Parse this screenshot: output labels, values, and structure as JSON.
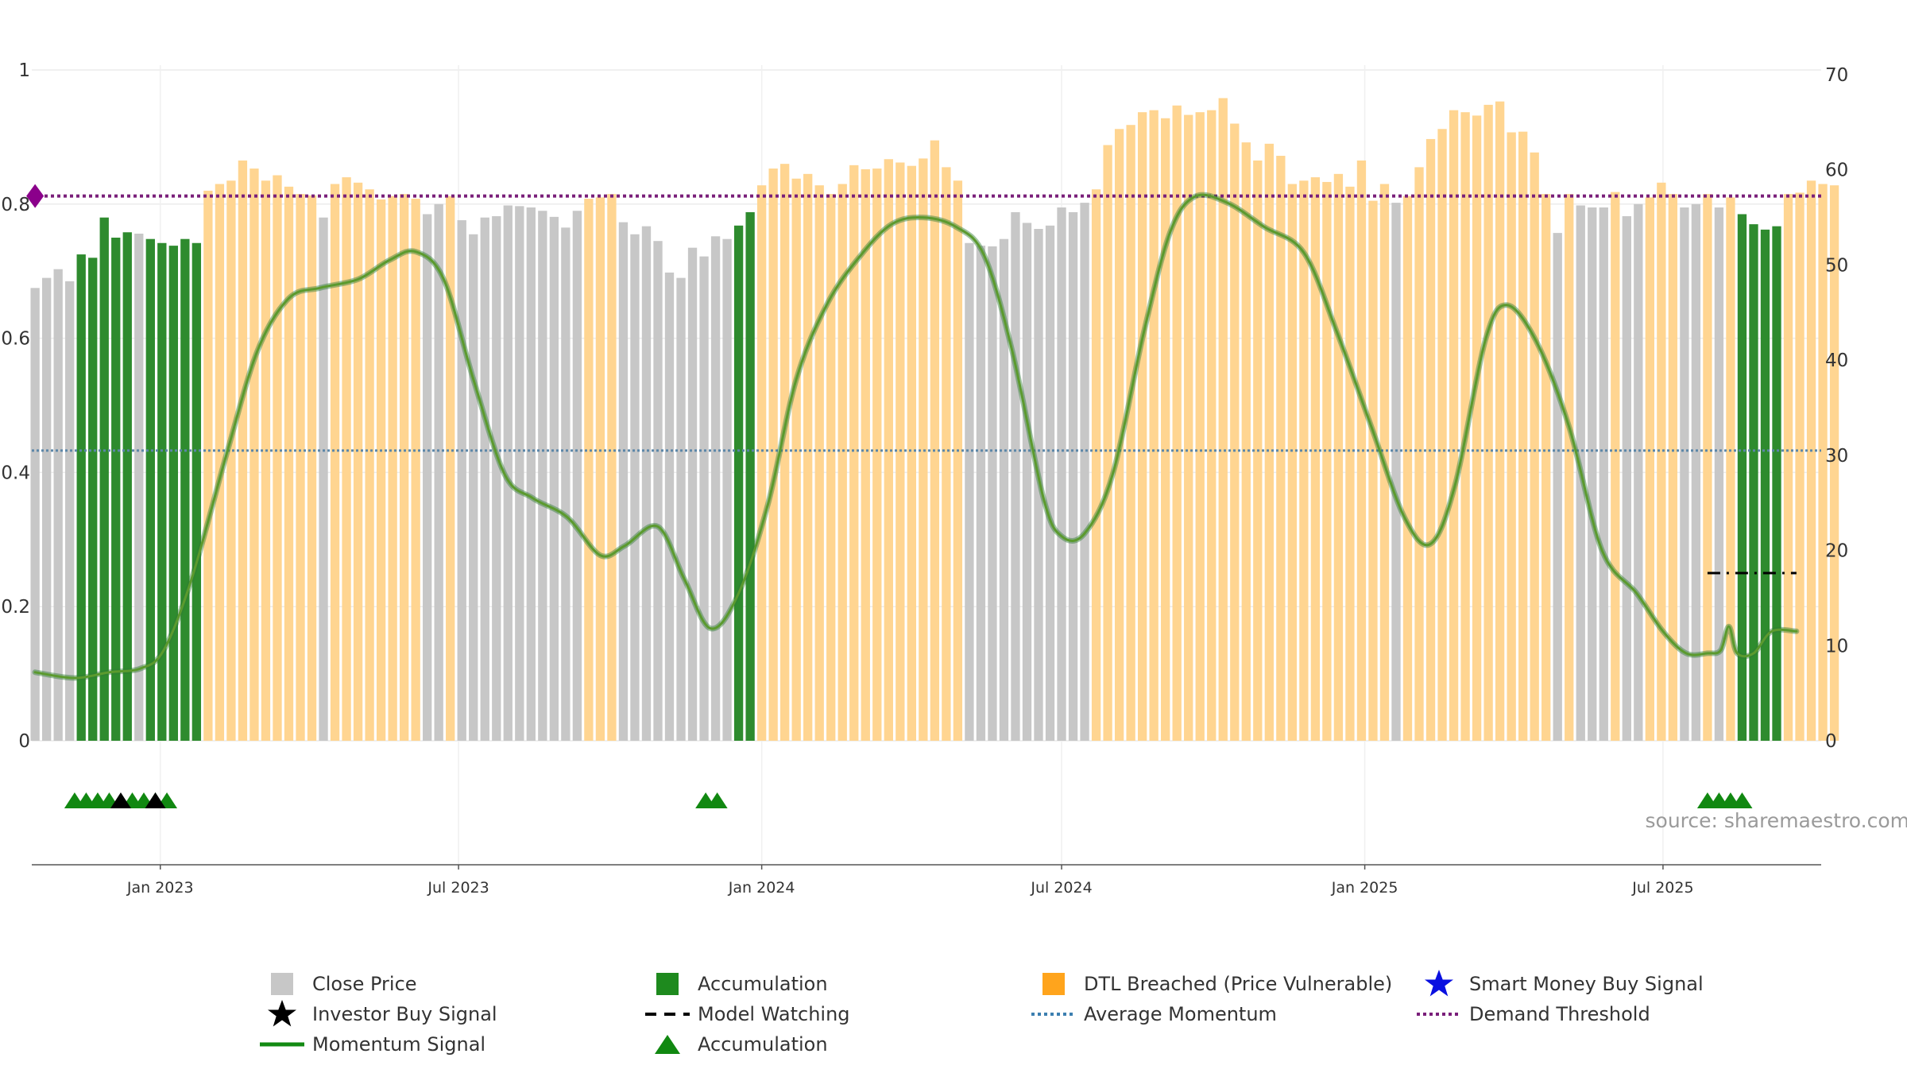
{
  "chart_data": {
    "type": "bar",
    "source_label": "source: sharemaestro.com",
    "x_tick_labels": [
      "Jan 2023",
      "Jul 2023",
      "Jan 2024",
      "Jul 2024",
      "Jan 2025",
      "Jul 2025"
    ],
    "x_tick_dates": [
      "2023-01-01",
      "2023-07-01",
      "2024-01-01",
      "2024-07-01",
      "2025-01-01",
      "2025-07-01"
    ],
    "x_range": [
      "2022-10-15",
      "2025-10-05"
    ],
    "y_left": {
      "lim": [
        0,
        1
      ],
      "ticks": [
        0,
        0.2,
        0.4,
        0.6,
        0.8,
        1
      ],
      "tick_labels": [
        "0",
        "0.2",
        "0.4",
        "0.6",
        "0.8",
        "1"
      ]
    },
    "y_right": {
      "lim": [
        0,
        70.5
      ],
      "ticks": [
        0,
        10,
        20,
        30,
        40,
        50,
        60,
        70
      ],
      "tick_labels": [
        "0",
        "10",
        "20",
        "30",
        "40",
        "50",
        "60",
        "70"
      ]
    },
    "bar_state_colors": {
      "close": "#c7c7c7",
      "accumulation": "#2e8b2e",
      "dtl": "#ffd591"
    },
    "bars_start_date": "2022-10-17",
    "bar_interval": "weekly",
    "bars": [
      [
        0.675,
        "close"
      ],
      [
        0.69,
        "close"
      ],
      [
        0.703,
        "close"
      ],
      [
        0.685,
        "close"
      ],
      [
        0.725,
        "accumulation"
      ],
      [
        0.72,
        "accumulation"
      ],
      [
        0.78,
        "accumulation"
      ],
      [
        0.75,
        "accumulation"
      ],
      [
        0.758,
        "accumulation"
      ],
      [
        0.756,
        "close"
      ],
      [
        0.748,
        "accumulation"
      ],
      [
        0.742,
        "accumulation"
      ],
      [
        0.738,
        "accumulation"
      ],
      [
        0.748,
        "accumulation"
      ],
      [
        0.742,
        "accumulation"
      ],
      [
        0.82,
        "dtl"
      ],
      [
        0.83,
        "dtl"
      ],
      [
        0.835,
        "dtl"
      ],
      [
        0.865,
        "dtl"
      ],
      [
        0.853,
        "dtl"
      ],
      [
        0.835,
        "dtl"
      ],
      [
        0.843,
        "dtl"
      ],
      [
        0.826,
        "dtl"
      ],
      [
        0.815,
        "dtl"
      ],
      [
        0.813,
        "dtl"
      ],
      [
        0.78,
        "close"
      ],
      [
        0.83,
        "dtl"
      ],
      [
        0.84,
        "dtl"
      ],
      [
        0.832,
        "dtl"
      ],
      [
        0.822,
        "dtl"
      ],
      [
        0.807,
        "dtl"
      ],
      [
        0.812,
        "dtl"
      ],
      [
        0.815,
        "dtl"
      ],
      [
        0.808,
        "dtl"
      ],
      [
        0.785,
        "close"
      ],
      [
        0.8,
        "close"
      ],
      [
        0.812,
        "dtl"
      ],
      [
        0.776,
        "close"
      ],
      [
        0.755,
        "close"
      ],
      [
        0.78,
        "close"
      ],
      [
        0.782,
        "close"
      ],
      [
        0.798,
        "close"
      ],
      [
        0.797,
        "close"
      ],
      [
        0.795,
        "close"
      ],
      [
        0.79,
        "close"
      ],
      [
        0.781,
        "close"
      ],
      [
        0.765,
        "close"
      ],
      [
        0.79,
        "close"
      ],
      [
        0.808,
        "dtl"
      ],
      [
        0.81,
        "dtl"
      ],
      [
        0.815,
        "dtl"
      ],
      [
        0.773,
        "close"
      ],
      [
        0.755,
        "close"
      ],
      [
        0.767,
        "close"
      ],
      [
        0.745,
        "close"
      ],
      [
        0.698,
        "close"
      ],
      [
        0.69,
        "close"
      ],
      [
        0.735,
        "close"
      ],
      [
        0.722,
        "close"
      ],
      [
        0.752,
        "close"
      ],
      [
        0.748,
        "close"
      ],
      [
        0.768,
        "accumulation"
      ],
      [
        0.788,
        "accumulation"
      ],
      [
        0.828,
        "dtl"
      ],
      [
        0.853,
        "dtl"
      ],
      [
        0.86,
        "dtl"
      ],
      [
        0.838,
        "dtl"
      ],
      [
        0.845,
        "dtl"
      ],
      [
        0.828,
        "dtl"
      ],
      [
        0.815,
        "dtl"
      ],
      [
        0.83,
        "dtl"
      ],
      [
        0.858,
        "dtl"
      ],
      [
        0.852,
        "dtl"
      ],
      [
        0.853,
        "dtl"
      ],
      [
        0.867,
        "dtl"
      ],
      [
        0.862,
        "dtl"
      ],
      [
        0.857,
        "dtl"
      ],
      [
        0.868,
        "dtl"
      ],
      [
        0.895,
        "dtl"
      ],
      [
        0.855,
        "dtl"
      ],
      [
        0.835,
        "dtl"
      ],
      [
        0.742,
        "close"
      ],
      [
        0.738,
        "close"
      ],
      [
        0.737,
        "close"
      ],
      [
        0.748,
        "close"
      ],
      [
        0.788,
        "close"
      ],
      [
        0.772,
        "close"
      ],
      [
        0.763,
        "close"
      ],
      [
        0.768,
        "close"
      ],
      [
        0.795,
        "close"
      ],
      [
        0.788,
        "close"
      ],
      [
        0.802,
        "close"
      ],
      [
        0.822,
        "dtl"
      ],
      [
        0.888,
        "dtl"
      ],
      [
        0.912,
        "dtl"
      ],
      [
        0.918,
        "dtl"
      ],
      [
        0.937,
        "dtl"
      ],
      [
        0.94,
        "dtl"
      ],
      [
        0.928,
        "dtl"
      ],
      [
        0.947,
        "dtl"
      ],
      [
        0.933,
        "dtl"
      ],
      [
        0.937,
        "dtl"
      ],
      [
        0.94,
        "dtl"
      ],
      [
        0.958,
        "dtl"
      ],
      [
        0.92,
        "dtl"
      ],
      [
        0.892,
        "dtl"
      ],
      [
        0.865,
        "dtl"
      ],
      [
        0.89,
        "dtl"
      ],
      [
        0.872,
        "dtl"
      ],
      [
        0.83,
        "dtl"
      ],
      [
        0.835,
        "dtl"
      ],
      [
        0.84,
        "dtl"
      ],
      [
        0.833,
        "dtl"
      ],
      [
        0.845,
        "dtl"
      ],
      [
        0.826,
        "dtl"
      ],
      [
        0.865,
        "dtl"
      ],
      [
        0.805,
        "dtl"
      ],
      [
        0.83,
        "dtl"
      ],
      [
        0.802,
        "close"
      ],
      [
        0.812,
        "dtl"
      ],
      [
        0.855,
        "dtl"
      ],
      [
        0.897,
        "dtl"
      ],
      [
        0.912,
        "dtl"
      ],
      [
        0.94,
        "dtl"
      ],
      [
        0.937,
        "dtl"
      ],
      [
        0.932,
        "dtl"
      ],
      [
        0.948,
        "dtl"
      ],
      [
        0.953,
        "dtl"
      ],
      [
        0.907,
        "dtl"
      ],
      [
        0.908,
        "dtl"
      ],
      [
        0.877,
        "dtl"
      ],
      [
        0.815,
        "dtl"
      ],
      [
        0.757,
        "close"
      ],
      [
        0.815,
        "dtl"
      ],
      [
        0.798,
        "close"
      ],
      [
        0.795,
        "close"
      ],
      [
        0.795,
        "close"
      ],
      [
        0.818,
        "dtl"
      ],
      [
        0.782,
        "close"
      ],
      [
        0.8,
        "close"
      ],
      [
        0.81,
        "dtl"
      ],
      [
        0.832,
        "dtl"
      ],
      [
        0.815,
        "dtl"
      ],
      [
        0.795,
        "close"
      ],
      [
        0.8,
        "close"
      ],
      [
        0.815,
        "dtl"
      ],
      [
        0.795,
        "close"
      ],
      [
        0.81,
        "dtl"
      ],
      [
        0.785,
        "accumulation"
      ],
      [
        0.77,
        "accumulation"
      ],
      [
        0.762,
        "accumulation"
      ],
      [
        0.767,
        "accumulation"
      ],
      [
        0.815,
        "dtl"
      ],
      [
        0.817,
        "dtl"
      ],
      [
        0.835,
        "dtl"
      ],
      [
        0.83,
        "dtl"
      ],
      [
        0.828,
        "dtl"
      ]
    ],
    "momentum_signal": {
      "axis": "right",
      "points": [
        [
          "2022-10-17",
          7.2
        ],
        [
          "2022-11-10",
          6.6
        ],
        [
          "2022-12-01",
          7.2
        ],
        [
          "2022-12-20",
          7.6
        ],
        [
          "2023-01-03",
          9.5
        ],
        [
          "2023-01-20",
          17
        ],
        [
          "2023-02-10",
          30
        ],
        [
          "2023-03-01",
          41
        ],
        [
          "2023-03-20",
          46.5
        ],
        [
          "2023-04-08",
          47.6
        ],
        [
          "2023-05-01",
          48.5
        ],
        [
          "2023-05-20",
          50.5
        ],
        [
          "2023-06-05",
          51.4
        ],
        [
          "2023-06-22",
          48.5
        ],
        [
          "2023-07-10",
          38
        ],
        [
          "2023-07-29",
          28
        ],
        [
          "2023-08-15",
          25.5
        ],
        [
          "2023-09-05",
          23.5
        ],
        [
          "2023-09-25",
          19.5
        ],
        [
          "2023-10-10",
          20.5
        ],
        [
          "2023-10-30",
          22.5
        ],
        [
          "2023-11-15",
          17
        ],
        [
          "2023-12-01",
          11.8
        ],
        [
          "2023-12-18",
          15.5
        ],
        [
          "2024-01-05",
          25
        ],
        [
          "2024-01-22",
          38
        ],
        [
          "2024-02-10",
          46
        ],
        [
          "2024-03-01",
          51
        ],
        [
          "2024-03-20",
          54.3
        ],
        [
          "2024-04-08",
          55
        ],
        [
          "2024-04-28",
          54
        ],
        [
          "2024-05-15",
          51
        ],
        [
          "2024-06-01",
          41
        ],
        [
          "2024-06-20",
          25.5
        ],
        [
          "2024-07-01",
          21.5
        ],
        [
          "2024-07-15",
          21.8
        ],
        [
          "2024-08-01",
          28
        ],
        [
          "2024-08-20",
          43
        ],
        [
          "2024-09-05",
          53.5
        ],
        [
          "2024-09-20",
          57.2
        ],
        [
          "2024-10-10",
          56.5
        ],
        [
          "2024-11-01",
          54
        ],
        [
          "2024-11-25",
          51.3
        ],
        [
          "2024-12-15",
          43
        ],
        [
          "2025-01-05",
          33
        ],
        [
          "2025-01-25",
          23.5
        ],
        [
          "2025-02-10",
          20.7
        ],
        [
          "2025-02-25",
          27
        ],
        [
          "2025-03-15",
          42
        ],
        [
          "2025-03-28",
          45.8
        ],
        [
          "2025-04-15",
          42
        ],
        [
          "2025-05-05",
          33
        ],
        [
          "2025-05-25",
          20
        ],
        [
          "2025-06-15",
          15.5
        ],
        [
          "2025-07-01",
          11.5
        ],
        [
          "2025-07-15",
          9.2
        ],
        [
          "2025-07-28",
          9.2
        ],
        [
          "2025-08-05",
          9.5
        ],
        [
          "2025-08-10",
          12
        ],
        [
          "2025-08-15",
          9.2
        ],
        [
          "2025-08-25",
          9.2
        ],
        [
          "2025-09-05",
          11.5
        ],
        [
          "2025-09-20",
          11.5
        ]
      ]
    },
    "average_momentum": 30.5,
    "demand_threshold": 0.812,
    "model_watching": {
      "value": 0.25,
      "from": "2025-07-28",
      "to": "2025-09-20"
    },
    "accumulation_triangles": [
      "2022-11-10",
      "2022-11-17",
      "2022-11-24",
      "2022-12-01",
      "2022-12-15",
      "2022-12-22",
      "2022-12-29",
      "2023-01-05",
      "2023-11-28",
      "2023-12-05",
      "2025-07-28",
      "2025-08-04",
      "2025-08-11",
      "2025-08-18"
    ],
    "investor_buy_signals": [
      "2022-12-08",
      "2022-12-29"
    ],
    "demand_marker_date": "2022-10-17",
    "colors": {
      "close": "#c7c7c7",
      "accumulation": "#2e8b2e",
      "dtl": "#ffd591",
      "momentum": "#5b9a2e",
      "momentum_glow": "#2e7d32",
      "average_momentum": "#5b86a8",
      "demand_threshold": "#7a1f7a",
      "marker": "#8b008b",
      "triangle": "#118811",
      "investor": "#000000",
      "smart_money": "#0a10e0",
      "source": "#9a9a9a"
    },
    "legend": [
      {
        "label": "Close Price",
        "symbol": "close-square-icon"
      },
      {
        "label": "Accumulation",
        "symbol": "accumulation-square-icon"
      },
      {
        "label": "DTL Breached (Price Vulnerable)",
        "symbol": "dtl-square-icon"
      },
      {
        "label": "Smart Money Buy Signal",
        "symbol": "star-icon"
      },
      {
        "label": "Investor Buy Signal",
        "symbol": "star-icon"
      },
      {
        "label": "Model Watching",
        "symbol": "dashed-line-icon"
      },
      {
        "label": "Average Momentum",
        "symbol": "dotted-line-icon"
      },
      {
        "label": "Demand Threshold",
        "symbol": "dotted-line-icon"
      },
      {
        "label": "Momentum Signal",
        "symbol": "solid-line-icon"
      },
      {
        "label": "Accumulation",
        "symbol": "triangle-icon"
      }
    ]
  }
}
